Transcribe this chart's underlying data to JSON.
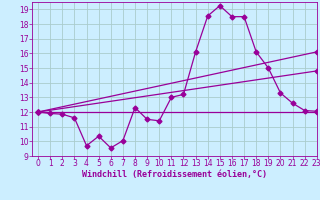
{
  "xlabel": "Windchill (Refroidissement éolien,°C)",
  "background_color": "#cceeff",
  "grid_color": "#aacccc",
  "line_color": "#990099",
  "xlim": [
    -0.5,
    23
  ],
  "ylim": [
    9,
    19.5
  ],
  "yticks": [
    9,
    10,
    11,
    12,
    13,
    14,
    15,
    16,
    17,
    18,
    19
  ],
  "xticks": [
    0,
    1,
    2,
    3,
    4,
    5,
    6,
    7,
    8,
    9,
    10,
    11,
    12,
    13,
    14,
    15,
    16,
    17,
    18,
    19,
    20,
    21,
    22,
    23
  ],
  "series1_x": [
    0,
    1,
    2,
    3,
    4,
    5,
    6,
    7,
    8,
    9,
    10,
    11,
    12,
    13,
    14,
    15,
    16,
    17,
    18,
    19,
    20,
    21,
    22,
    23
  ],
  "series1_y": [
    12,
    11.9,
    11.85,
    11.6,
    9.7,
    10.35,
    9.55,
    10.05,
    12.3,
    11.5,
    11.4,
    13.0,
    13.2,
    16.1,
    18.55,
    19.25,
    18.5,
    18.5,
    16.1,
    15.0,
    13.3,
    12.6,
    12.1,
    12.05
  ],
  "series2_x": [
    0,
    23
  ],
  "series2_y": [
    12,
    12
  ],
  "series3_x": [
    0,
    23
  ],
  "series3_y": [
    12,
    16.1
  ],
  "series4_x": [
    0,
    23
  ],
  "series4_y": [
    12,
    14.8
  ],
  "marker_size": 2.5,
  "line_width": 0.9,
  "tick_fontsize": 5.5,
  "xlabel_fontsize": 6.0
}
